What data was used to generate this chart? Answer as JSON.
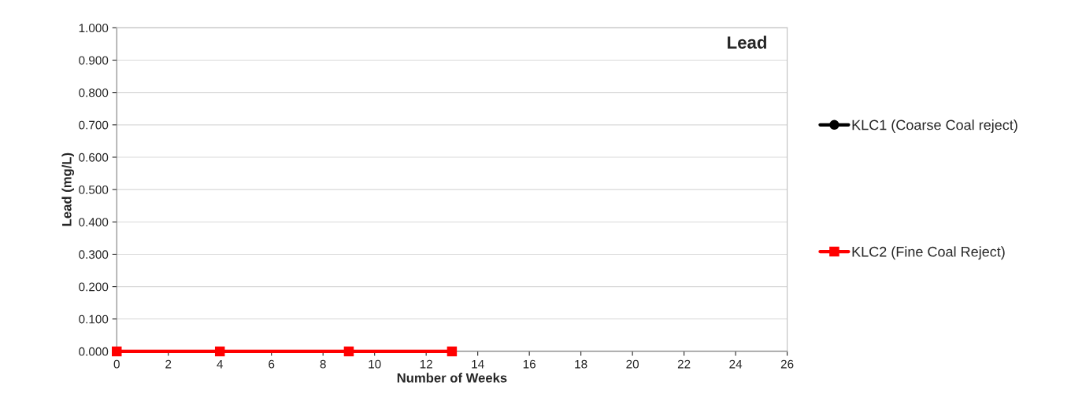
{
  "chart_data": {
    "type": "line",
    "title": "Lead",
    "xlabel": "Number of Weeks",
    "ylabel": "Lead (mg/L)",
    "x": [
      0,
      4,
      9,
      13
    ],
    "series": [
      {
        "name": "KLC1 (Coarse Coal reject)",
        "color": "#000000",
        "marker": "circle",
        "values": [
          null,
          null,
          null,
          null
        ]
      },
      {
        "name": "KLC2 (Fine Coal Reject)",
        "color": "#ff0000",
        "marker": "square",
        "values": [
          0,
          0,
          0,
          0
        ]
      }
    ],
    "xlim": [
      0,
      26
    ],
    "xticks": [
      0,
      2,
      4,
      6,
      8,
      10,
      12,
      14,
      16,
      18,
      20,
      22,
      24,
      26
    ],
    "ylim": [
      0,
      1
    ],
    "yticks": [
      {
        "value": 0,
        "label": "0.000"
      },
      {
        "value": 0.1,
        "label": "0.100"
      },
      {
        "value": 0.2,
        "label": "0.200"
      },
      {
        "value": 0.3,
        "label": "0.300"
      },
      {
        "value": 0.4,
        "label": "0.400"
      },
      {
        "value": 0.5,
        "label": "0.500"
      },
      {
        "value": 0.6,
        "label": "0.600"
      },
      {
        "value": 0.7,
        "label": "0.700"
      },
      {
        "value": 0.8,
        "label": "0.800"
      },
      {
        "value": 0.9,
        "label": "0.900"
      },
      {
        "value": 1,
        "label": "1.000"
      }
    ],
    "grid": "y",
    "legend": "right",
    "line_style": "solid"
  }
}
